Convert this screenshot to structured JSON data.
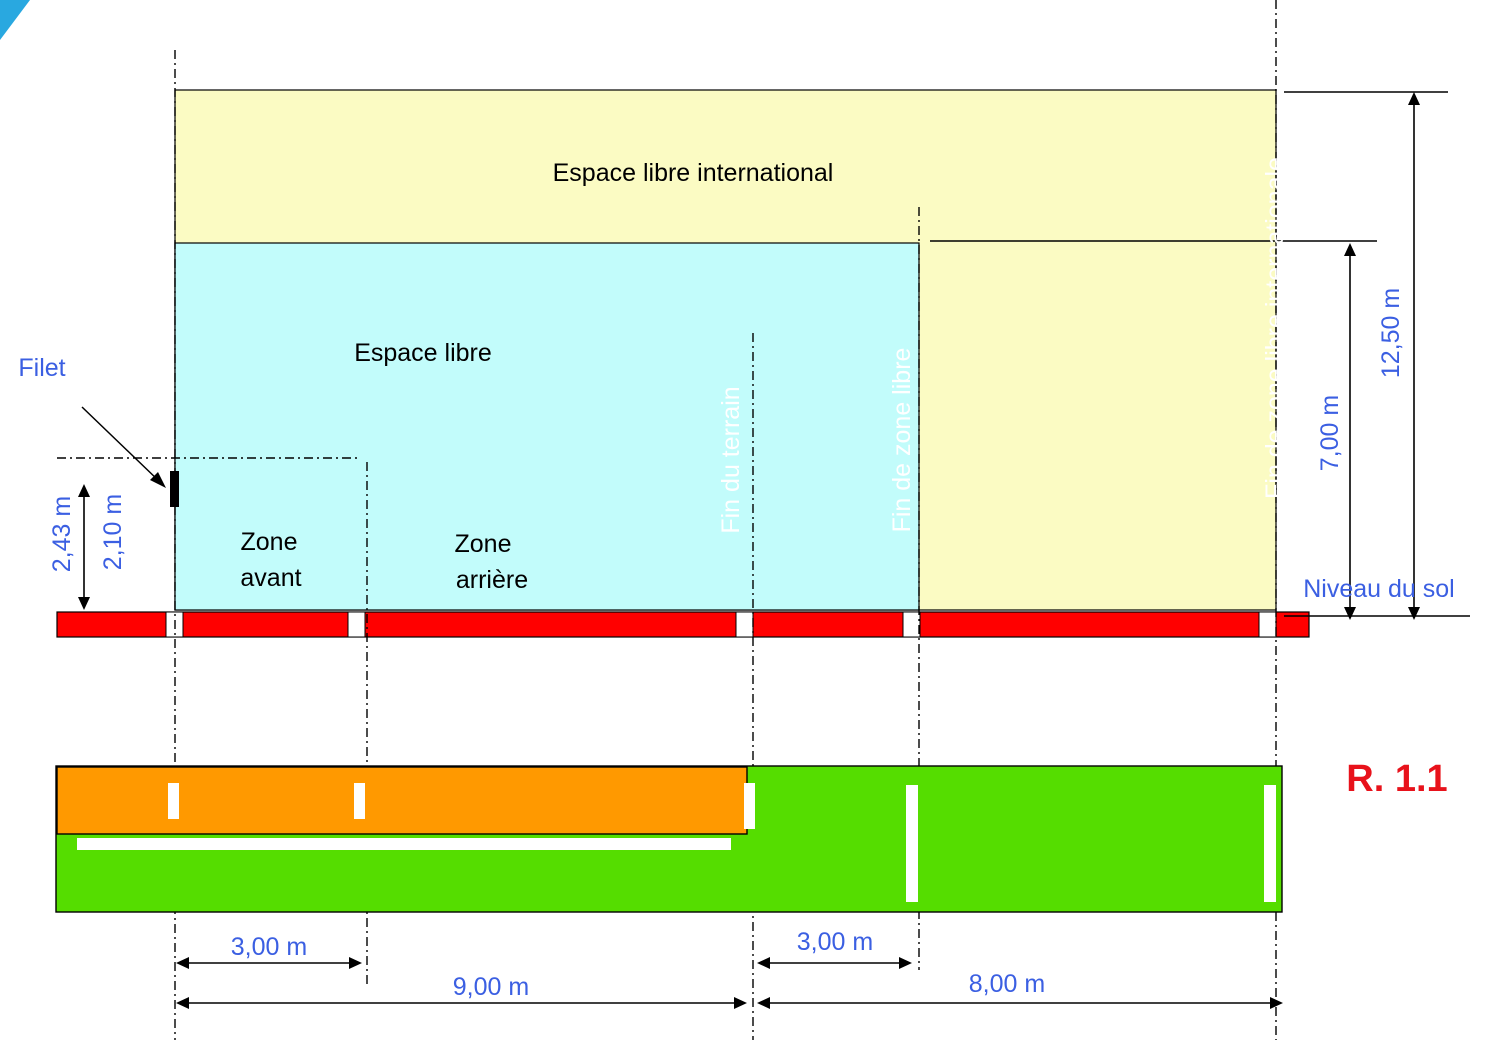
{
  "labels": {
    "international_space": "Espace libre international",
    "free_space": "Espace libre",
    "net": "Filet",
    "front_zone_1": "Zone",
    "front_zone_2": "avant",
    "back_zone_1": "Zone",
    "back_zone_2": "arrière",
    "end_court": "Fin du terrain",
    "end_free_zone": "Fin de zone libre",
    "end_intl_zone": "Fin de zone libre internationale",
    "ground_level": "Niveau du sol",
    "figure_ref": "R. 1.1"
  },
  "dimensions": {
    "net_height_men": "2,43 m",
    "net_height_women": "2,10 m",
    "free_height": "7,00 m",
    "intl_height": "12,50 m",
    "front_zone_length": "3,00 m",
    "court_half_length": "9,00 m",
    "free_zone_length": "3,00 m",
    "intl_zone_length": "8,00 m"
  },
  "colors": {
    "international_space": "#fbfbc3",
    "free_space": "#c2fcfb",
    "ground": "#ff0000",
    "court_top": "#ff9900",
    "court_bottom": "#55dd00",
    "dimension_text": "#3b5fe2",
    "figure_ref": "#e8121b"
  }
}
